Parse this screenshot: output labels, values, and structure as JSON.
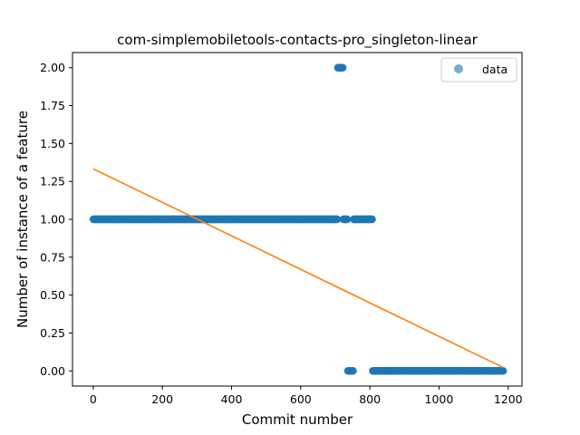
{
  "chart_data": {
    "type": "scatter",
    "title": "com-simplemobiletools-contacts-pro_singleton-linear",
    "xlabel": "Commit number",
    "ylabel": "Number of instance of a feature",
    "xlim": [
      -60,
      1240
    ],
    "ylim": [
      -0.1,
      2.1
    ],
    "xticks": [
      0,
      200,
      400,
      600,
      800,
      1000,
      1200
    ],
    "xtick_labels": [
      "0",
      "200",
      "400",
      "600",
      "800",
      "1000",
      "1200"
    ],
    "yticks": [
      0.0,
      0.25,
      0.5,
      0.75,
      1.0,
      1.25,
      1.5,
      1.75,
      2.0
    ],
    "ytick_labels": [
      "0.00",
      "0.25",
      "0.50",
      "0.75",
      "1.00",
      "1.25",
      "1.50",
      "1.75",
      "2.00"
    ],
    "grid": false,
    "legend": {
      "position": "top-right",
      "entries": [
        "data"
      ]
    },
    "series": [
      {
        "name": "data",
        "kind": "scatter",
        "color": "#1f77b4",
        "segments": [
          {
            "x_start": 0,
            "x_end": 706,
            "y": 1
          },
          {
            "x_start": 707,
            "x_end": 722,
            "y": 2
          },
          {
            "x_start": 723,
            "x_end": 735,
            "y": 1
          },
          {
            "x_start": 736,
            "x_end": 752,
            "y": 0
          },
          {
            "x_start": 753,
            "x_end": 807,
            "y": 1
          },
          {
            "x_start": 808,
            "x_end": 1186,
            "y": 0
          }
        ]
      },
      {
        "kind": "line",
        "color": "#ff7f0e",
        "x": [
          0,
          1186
        ],
        "y": [
          1.333,
          0.022
        ]
      }
    ]
  }
}
